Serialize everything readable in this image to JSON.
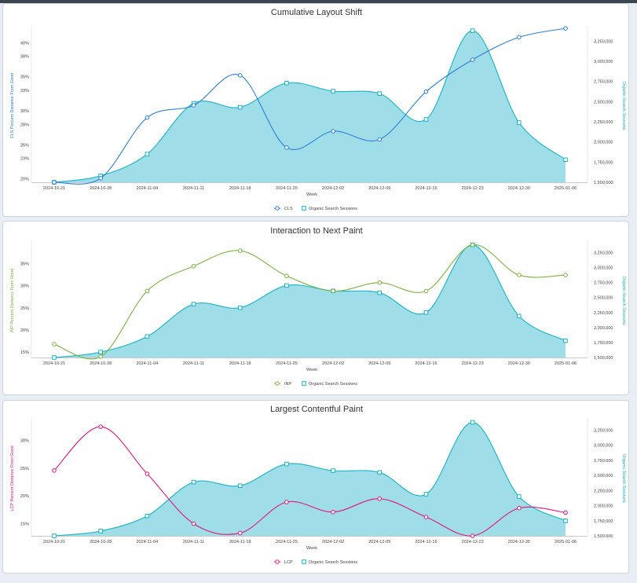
{
  "chart_data": [
    {
      "type": "line",
      "title": "Cumulative Layout Shift",
      "xlabel": "Week",
      "ylabel": "CLS Percent Distance From Good",
      "y2label": "Organic Search Sessions",
      "categories": [
        "2024-10-21",
        "2024-10-28",
        "2024-11-04",
        "2024-11-11",
        "2024-11-18",
        "2024-11-25",
        "2024-12-02",
        "2024-12-09",
        "2024-12-16",
        "2024-12-23",
        "2024-12-30",
        "2025-01-06"
      ],
      "ylim": [
        19.5,
        42
      ],
      "yticks": [
        20,
        23,
        25,
        28,
        30,
        33,
        35,
        38,
        40
      ],
      "yticklabels": [
        "20%",
        "23%",
        "25%",
        "28%",
        "30%",
        "33%",
        "35%",
        "38%",
        "40%"
      ],
      "y2lim": [
        1500000,
        3400000
      ],
      "y2ticks": [
        1500000,
        1750000,
        2000000,
        2250000,
        2500000,
        2750000,
        3000000,
        3250000
      ],
      "y2ticklabels": [
        "1,500,000",
        "1,750,000",
        "2,000,000",
        "2,250,000",
        "2,500,000",
        "2,750,000",
        "3,000,000",
        "3,250,000"
      ],
      "legend_position": "bottom",
      "series": [
        {
          "name": "CLS",
          "axis": "left",
          "style": "line",
          "color": "#2f7ed8",
          "values": [
            19.5,
            20.1,
            29.0,
            30.8,
            35.2,
            24.6,
            27.0,
            25.8,
            32.8,
            37.5,
            40.8,
            42.1
          ]
        },
        {
          "name": "Organic Search Sessions",
          "axis": "right",
          "style": "area",
          "color": "#17b3c6",
          "values": [
            1500000,
            1580000,
            1850000,
            2480000,
            2430000,
            2730000,
            2630000,
            2600000,
            2280000,
            3380000,
            2240000,
            1780000
          ]
        }
      ]
    },
    {
      "type": "line",
      "title": "Interaction to Next Paint",
      "xlabel": "Week",
      "ylabel": "INP Percent Distance From Good",
      "y2label": "Organic Search Sessions",
      "categories": [
        "2024-10-21",
        "2024-10-28",
        "2024-11-04",
        "2024-11-11",
        "2024-11-18",
        "2024-11-25",
        "2024-12-02",
        "2024-12-09",
        "2024-12-16",
        "2024-12-23",
        "2024-12-30",
        "2025-01-06"
      ],
      "ylim": [
        13.8,
        39.5
      ],
      "yticks": [
        15,
        20,
        25,
        30,
        35
      ],
      "yticklabels": [
        "15%",
        "20%",
        "25%",
        "30%",
        "35%"
      ],
      "y2lim": [
        1500000,
        3400000
      ],
      "y2ticks": [
        1500000,
        1750000,
        2000000,
        2250000,
        2500000,
        2750000,
        3000000,
        3250000
      ],
      "y2ticklabels": [
        "1,500,000",
        "1,750,000",
        "2,000,000",
        "2,250,000",
        "2,500,000",
        "2,750,000",
        "3,000,000",
        "3,250,000"
      ],
      "legend_position": "bottom",
      "series": [
        {
          "name": "INP",
          "axis": "left",
          "style": "line",
          "color": "#7cb342",
          "values": [
            16.8,
            14.0,
            28.8,
            34.4,
            37.9,
            32.2,
            28.8,
            30.7,
            28.8,
            39.2,
            32.4,
            32.4
          ]
        },
        {
          "name": "Organic Search Sessions",
          "axis": "right",
          "style": "area",
          "color": "#17b3c6",
          "values": [
            1500000,
            1590000,
            1850000,
            2390000,
            2330000,
            2700000,
            2610000,
            2580000,
            2250000,
            3380000,
            2190000,
            1780000
          ]
        }
      ]
    },
    {
      "type": "line",
      "title": "Largest Contentful Paint",
      "xlabel": "Week",
      "ylabel": "LCP Percent Distance From Good",
      "y2label": "Organic Search Sessions",
      "categories": [
        "2024-10-21",
        "2024-10-28",
        "2024-11-04",
        "2024-11-11",
        "2024-11-18",
        "2024-11-25",
        "2024-12-02",
        "2024-12-09",
        "2024-12-16",
        "2024-12-23",
        "2024-12-30",
        "2025-01-06"
      ],
      "ylim": [
        12.8,
        33.5
      ],
      "yticks": [
        15,
        20,
        25,
        30
      ],
      "yticklabels": [
        "15%",
        "20%",
        "25%",
        "30%"
      ],
      "y2lim": [
        1500000,
        3400000
      ],
      "y2ticks": [
        1500000,
        1750000,
        2000000,
        2250000,
        2500000,
        2750000,
        3000000,
        3250000
      ],
      "y2ticklabels": [
        "1,500,000",
        "1,750,000",
        "2,000,000",
        "2,250,000",
        "2,500,000",
        "2,750,000",
        "3,000,000",
        "3,250,000"
      ],
      "legend_position": "bottom",
      "series": [
        {
          "name": "LCP",
          "axis": "left",
          "style": "line",
          "color": "#e0157d",
          "values": [
            24.6,
            32.5,
            24.0,
            15.0,
            13.3,
            18.9,
            17.1,
            19.5,
            16.2,
            12.8,
            17.8,
            17.0
          ]
        },
        {
          "name": "Organic Search Sessions",
          "axis": "right",
          "style": "area",
          "color": "#17b3c6",
          "values": [
            1500000,
            1580000,
            1830000,
            2390000,
            2330000,
            2690000,
            2580000,
            2550000,
            2190000,
            3380000,
            2150000,
            1750000
          ]
        }
      ]
    }
  ]
}
